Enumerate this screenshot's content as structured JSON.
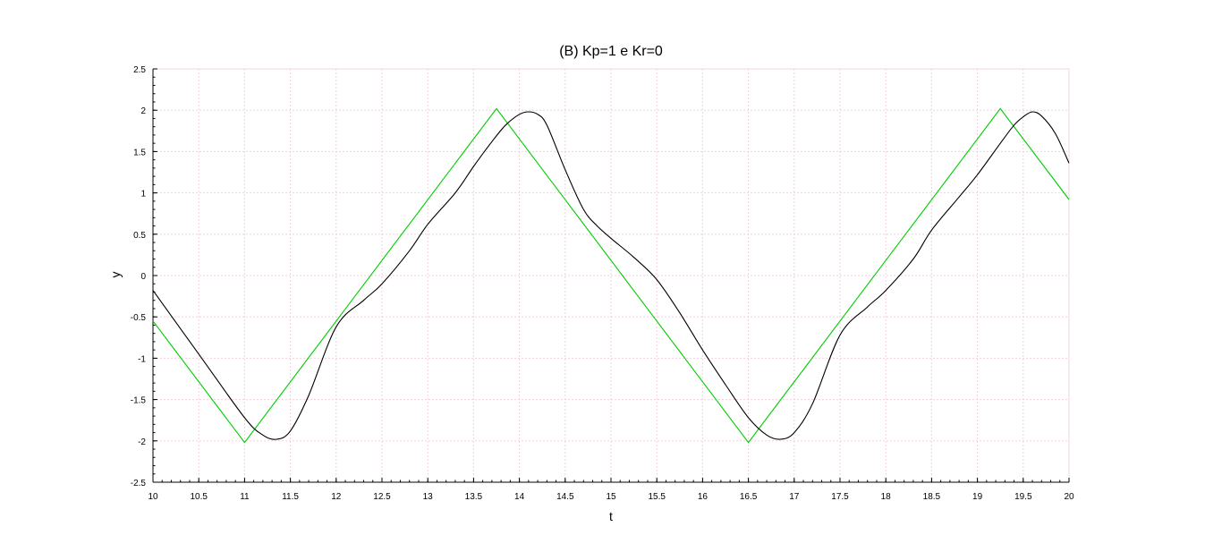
{
  "chart_data": {
    "type": "line",
    "title": "(B) Kp=1 e Kr=0",
    "xlabel": "t",
    "ylabel": "y",
    "xlim": [
      10,
      20
    ],
    "ylim": [
      -2.5,
      2.5
    ],
    "xticks": [
      "10",
      "10.5",
      "11",
      "11.5",
      "12",
      "12.5",
      "13",
      "13.5",
      "14",
      "14.5",
      "15",
      "15.5",
      "16",
      "16.5",
      "17",
      "17.5",
      "18",
      "18.5",
      "19",
      "19.5",
      "20"
    ],
    "yticks": [
      "-2.5",
      "-2",
      "-1.5",
      "-1",
      "-0.5",
      "0",
      "0.5",
      "1",
      "1.5",
      "2",
      "2.5"
    ],
    "grid": true,
    "series": [
      {
        "color": "#00cc00",
        "x": [
          10,
          11.0,
          13.75,
          16.5,
          19.25,
          20
        ],
        "y": [
          -0.55,
          -2.02,
          2.02,
          -2.02,
          2.02,
          0.92
        ]
      },
      {
        "color": "#000000",
        "x": [
          10.0,
          10.5,
          11.0,
          11.2,
          11.35,
          11.5,
          11.7,
          12.0,
          12.3,
          12.5,
          12.8,
          13.0,
          13.3,
          13.5,
          13.7,
          13.85,
          14.0,
          14.1,
          14.2,
          14.3,
          14.5,
          14.7,
          14.85,
          15.0,
          15.25,
          15.5,
          15.75,
          16.0,
          16.25,
          16.5,
          16.7,
          16.85,
          17.0,
          17.2,
          17.5,
          17.8,
          18.0,
          18.3,
          18.5,
          18.8,
          19.0,
          19.25,
          19.4,
          19.5,
          19.6,
          19.7,
          19.85,
          20.0
        ],
        "y": [
          -0.18,
          -0.95,
          -1.72,
          -1.93,
          -1.98,
          -1.88,
          -1.45,
          -0.62,
          -0.3,
          -0.1,
          0.3,
          0.62,
          1.0,
          1.32,
          1.62,
          1.82,
          1.95,
          1.98,
          1.95,
          1.82,
          1.28,
          0.8,
          0.6,
          0.45,
          0.22,
          -0.05,
          -0.45,
          -0.9,
          -1.32,
          -1.72,
          -1.93,
          -1.98,
          -1.9,
          -1.55,
          -0.72,
          -0.38,
          -0.18,
          0.2,
          0.55,
          0.95,
          1.22,
          1.6,
          1.82,
          1.92,
          1.98,
          1.93,
          1.72,
          1.36
        ]
      }
    ]
  }
}
